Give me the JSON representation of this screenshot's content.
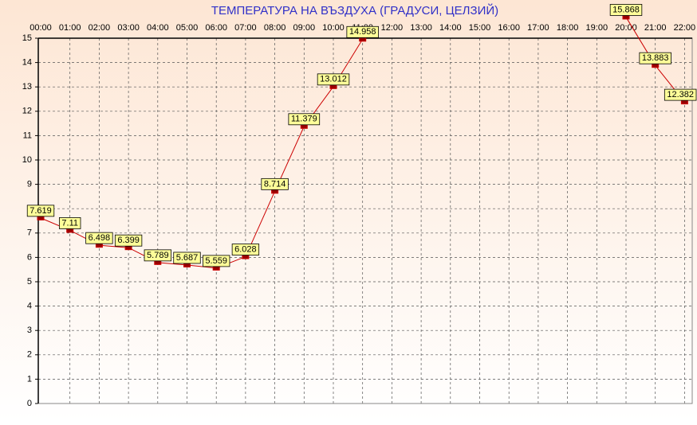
{
  "chart_data": {
    "type": "line",
    "title": "ТЕМПЕРАТУРА НА ВЪЗДУХА  (ГРАДУСИ, ЦЕЛЗИЙ)",
    "categories": [
      "00:00",
      "01:00",
      "02:00",
      "03:00",
      "04:00",
      "05:00",
      "06:00",
      "07:00",
      "08:00",
      "09:00",
      "10:00",
      "11:00",
      "12:00",
      "13:00",
      "14:00",
      "15:00",
      "16:00",
      "17:00",
      "18:00",
      "19:00",
      "20:00",
      "21:00",
      "22:00"
    ],
    "series": [
      {
        "name": "Температура",
        "color": "#cc0000",
        "values": [
          7.619,
          7.11,
          6.498,
          6.399,
          5.789,
          5.687,
          5.559,
          6.028,
          8.714,
          11.379,
          13.012,
          14.958,
          null,
          null,
          null,
          null,
          null,
          null,
          null,
          null,
          15.868,
          13.883,
          12.382
        ]
      }
    ],
    "ylim": [
      0,
      15
    ],
    "yticks": [
      0,
      1,
      2,
      3,
      4,
      5,
      6,
      7,
      8,
      9,
      10,
      11,
      12,
      13,
      14,
      15
    ],
    "grid": true
  }
}
